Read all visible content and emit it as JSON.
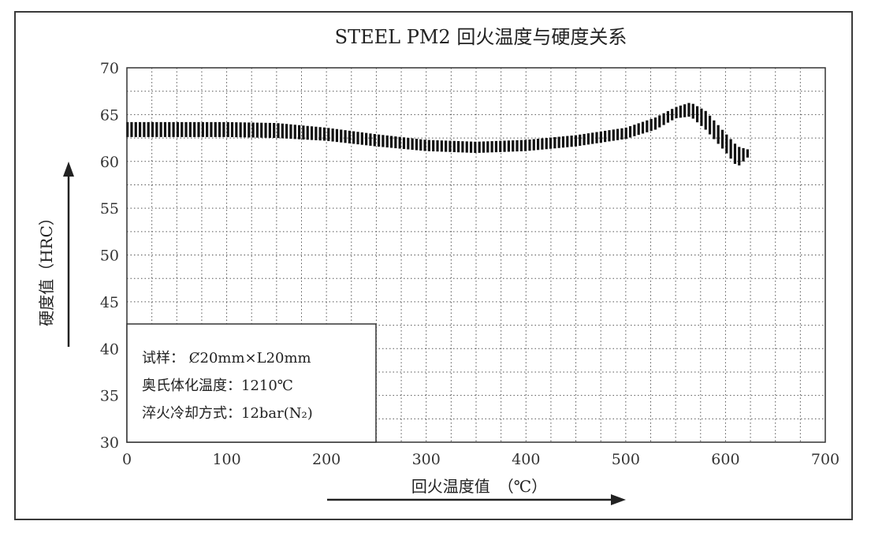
{
  "chart_data": {
    "type": "area",
    "title": "STEEL PM2 回火温度与硬度关系",
    "xlabel": "回火温度值　（℃）",
    "ylabel": "硬度值（HRC）",
    "xlim": [
      0,
      700
    ],
    "ylim": [
      30,
      70
    ],
    "xticks": [
      "0",
      "100",
      "200",
      "300",
      "400",
      "500",
      "600",
      "700"
    ],
    "yticks": [
      "30",
      "35",
      "40",
      "45",
      "50",
      "55",
      "60",
      "65",
      "70"
    ],
    "grid": true,
    "series": [
      {
        "x": [
          0,
          50,
          100,
          150,
          200,
          250,
          300,
          350,
          400,
          450,
          500,
          530,
          550,
          565,
          580,
          600,
          612,
          625
        ],
        "upper": [
          64.2,
          64.2,
          64.2,
          64.1,
          63.6,
          62.9,
          62.3,
          62.1,
          62.3,
          62.8,
          63.6,
          64.7,
          65.8,
          66.3,
          65.4,
          63.0,
          61.6,
          61.2
        ],
        "lower": [
          62.6,
          62.6,
          62.6,
          62.5,
          62.2,
          61.6,
          61.1,
          60.9,
          61.1,
          61.6,
          62.4,
          63.4,
          64.6,
          64.8,
          63.4,
          61.0,
          59.4,
          60.7
        ]
      }
    ],
    "legend": {
      "placement": "bottom-left",
      "lines": [
        "试样：  Ȼ20mm×L20mm",
        "奥氏体化温度：1210℃",
        "淬火冷却方式：12bar(N₂)"
      ]
    }
  }
}
